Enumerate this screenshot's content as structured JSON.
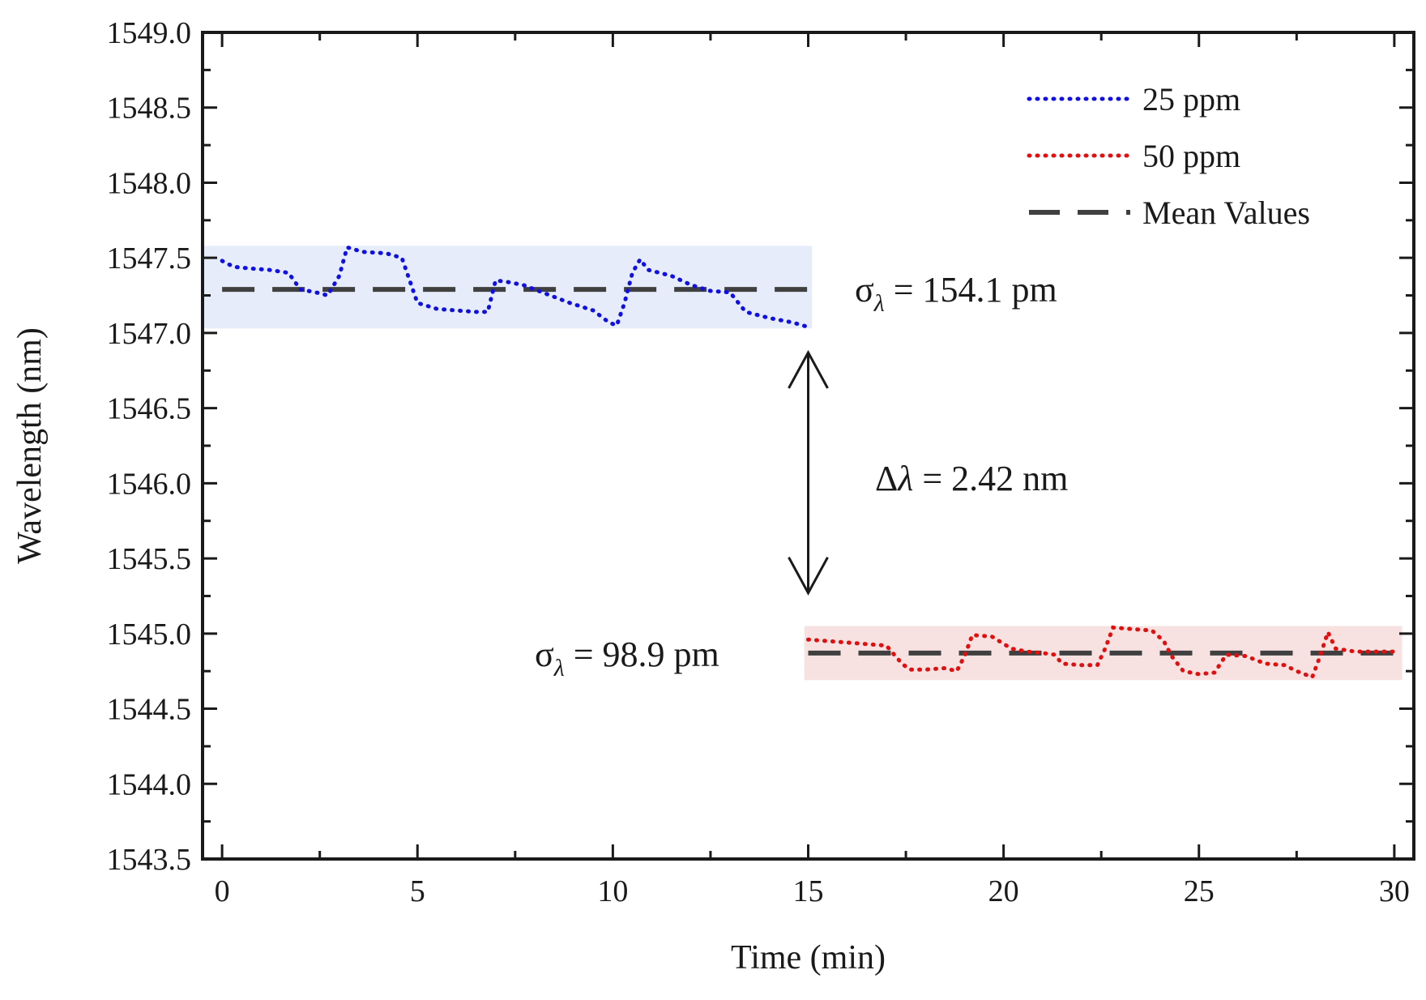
{
  "chart_data": {
    "type": "line",
    "xlabel": "Time (min)",
    "ylabel": "Wavelength (nm)",
    "xlim": [
      -0.5,
      30.5
    ],
    "ylim": [
      1543.5,
      1549.0
    ],
    "xticks": [
      0,
      5,
      10,
      15,
      20,
      25,
      30
    ],
    "yticks": [
      1543.5,
      1544.0,
      1544.5,
      1545.0,
      1545.5,
      1546.0,
      1546.5,
      1547.0,
      1547.5,
      1548.0,
      1548.5,
      1549.0
    ],
    "ytick_labels": [
      "1543.5",
      "1544.0",
      "1544.5",
      "1545.0",
      "1545.5",
      "1546.0",
      "1546.5",
      "1547.0",
      "1547.5",
      "1548.0",
      "1548.5",
      "1549.0"
    ],
    "series": [
      {
        "name": "25 ppm",
        "color": "#1010e0",
        "style": "dotted",
        "x": [
          0,
          0.3,
          0.7,
          1.2,
          1.7,
          2.0,
          2.4,
          2.7,
          3.0,
          3.2,
          3.6,
          4.2,
          4.6,
          4.8,
          5.0,
          5.5,
          6.0,
          6.5,
          6.8,
          7.0,
          7.3,
          7.7,
          8.3,
          8.9,
          9.5,
          9.9,
          10.1,
          10.3,
          10.5,
          10.7,
          10.9,
          11.5,
          12.0,
          12.5,
          13.0,
          13.4,
          14.0,
          14.6,
          15.0
        ],
        "y": [
          1547.48,
          1547.44,
          1547.43,
          1547.42,
          1547.4,
          1547.29,
          1547.27,
          1547.25,
          1547.38,
          1547.57,
          1547.54,
          1547.53,
          1547.5,
          1547.35,
          1547.2,
          1547.16,
          1547.15,
          1547.14,
          1547.14,
          1547.35,
          1547.34,
          1547.32,
          1547.26,
          1547.2,
          1547.15,
          1547.07,
          1547.05,
          1547.2,
          1547.4,
          1547.49,
          1547.42,
          1547.38,
          1547.32,
          1547.28,
          1547.27,
          1547.14,
          1547.1,
          1547.07,
          1547.04
        ]
      },
      {
        "name": "50 ppm",
        "color": "#e01010",
        "style": "dotted",
        "x": [
          15.0,
          15.5,
          16.0,
          16.5,
          17.0,
          17.4,
          17.6,
          18.0,
          18.5,
          18.8,
          19.0,
          19.2,
          19.7,
          20.2,
          20.6,
          21.0,
          21.3,
          21.5,
          22.0,
          22.4,
          22.6,
          22.8,
          23.3,
          23.8,
          24.1,
          24.3,
          24.6,
          25.0,
          25.4,
          25.7,
          26.2,
          26.7,
          27.2,
          27.5,
          27.9,
          28.1,
          28.3,
          28.5,
          29.0,
          29.5,
          30.0
        ],
        "y": [
          1544.96,
          1544.95,
          1544.94,
          1544.93,
          1544.92,
          1544.8,
          1544.76,
          1544.76,
          1544.77,
          1544.75,
          1544.85,
          1544.99,
          1544.98,
          1544.9,
          1544.88,
          1544.87,
          1544.86,
          1544.8,
          1544.79,
          1544.79,
          1544.9,
          1545.04,
          1545.03,
          1545.02,
          1544.95,
          1544.85,
          1544.75,
          1544.73,
          1544.74,
          1544.86,
          1544.85,
          1544.8,
          1544.79,
          1544.75,
          1544.71,
          1544.85,
          1545.01,
          1544.9,
          1544.88,
          1544.88,
          1544.88
        ]
      }
    ],
    "mean_values": [
      {
        "name": "Mean Values",
        "x_range": [
          0,
          15
        ],
        "y": 1547.29
      },
      {
        "name": "Mean Values",
        "x_range": [
          15,
          30
        ],
        "y": 1544.87
      }
    ],
    "bands": [
      {
        "series": "25 ppm",
        "x_range": [
          -0.5,
          15.1
        ],
        "y_range": [
          1547.03,
          1547.58
        ],
        "color": "#e6ecfa"
      },
      {
        "series": "50 ppm",
        "x_range": [
          14.9,
          30.2
        ],
        "y_range": [
          1544.69,
          1545.05
        ],
        "color": "#f7e1e1"
      }
    ],
    "legend": {
      "position": "top-right",
      "entries": [
        {
          "label": "25 ppm",
          "color": "#1010e0",
          "style": "dotted"
        },
        {
          "label": "50 ppm",
          "color": "#e01010",
          "style": "dotted"
        },
        {
          "label": "Mean Values",
          "color": "#404040",
          "style": "dashed"
        }
      ]
    },
    "annotations": {
      "sigma_25": {
        "prefix": "σ",
        "sub": "λ",
        "value": " = 154.1 pm"
      },
      "sigma_50": {
        "prefix": "σ",
        "sub": "λ",
        "value": " = 98.9 pm"
      },
      "delta": {
        "prefix": "Δ",
        "symbol": "λ",
        "value": " = 2.42 nm"
      },
      "arrow": {
        "x": 15.0,
        "y_from": 1546.87,
        "y_to": 1545.27
      }
    },
    "mean_color": "#404040",
    "grid": false
  }
}
